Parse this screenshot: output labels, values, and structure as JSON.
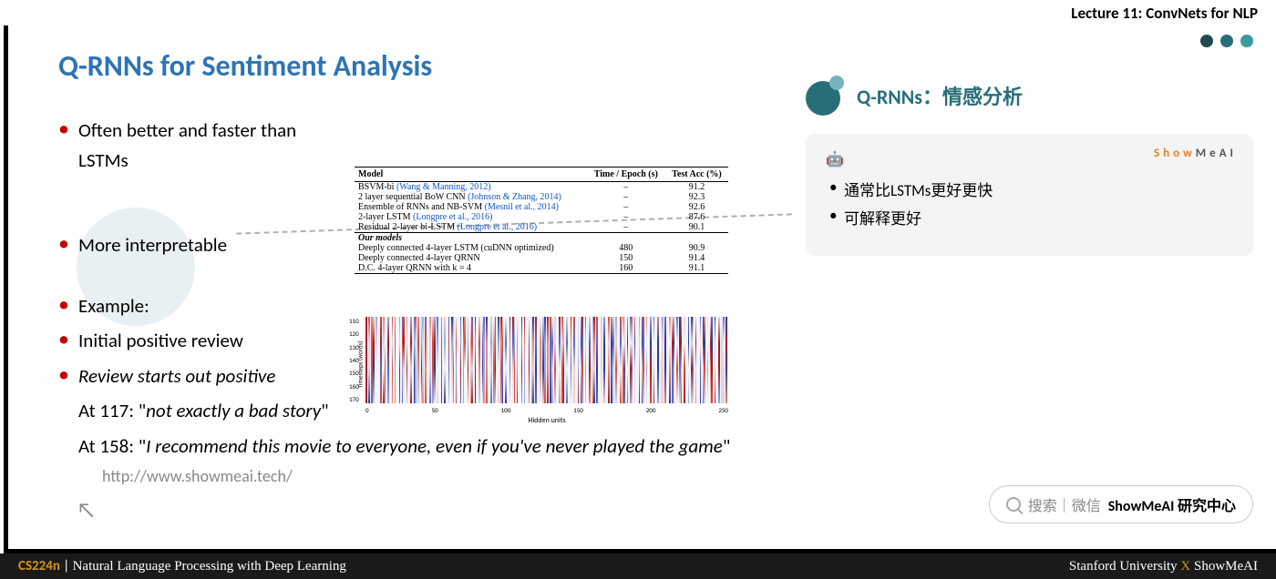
{
  "header": {
    "lecture_label": "Lecture 11: ConvNets for NLP"
  },
  "slide": {
    "title": "Q-RNNs for Sentiment Analysis",
    "title_color": "#2e74b5",
    "bullets": {
      "b1": "Often better and faster than LSTMs",
      "b2": "More interpretable",
      "b3": "Example:",
      "b4": "Initial positive review",
      "b5": "Review starts out positive",
      "b6a": "At 117: \"",
      "b6b": "not exactly a bad story",
      "b6c": "\"",
      "b7a": "At 158: \"",
      "b7b": "I recommend this movie to everyone, even if you've never played the game",
      "b7c": "\""
    },
    "url": "http://www.showmeai.tech/"
  },
  "table": {
    "headers": {
      "c1": "Model",
      "c2": "Time / Epoch (s)",
      "c3": "Test Acc (%)"
    },
    "rows": [
      {
        "model_a": "BSVM-bi ",
        "model_b": "(Wang & Manning, 2012)",
        "time": "–",
        "acc": "91.2"
      },
      {
        "model_a": "2 layer sequential BoW CNN ",
        "model_b": "(Johnson & Zhang, 2014)",
        "time": "–",
        "acc": "92.3"
      },
      {
        "model_a": "Ensemble of RNNs and NB-SVM ",
        "model_b": "(Mesnil et al., 2014)",
        "time": "–",
        "acc": "92.6"
      },
      {
        "model_a": "2-layer LSTM ",
        "model_b": "(Longpre et al., 2016)",
        "time": "–",
        "acc": "87.6"
      },
      {
        "model_a": "Residual 2-layer bi-LSTM ",
        "model_b": "(Longpre et al., 2016)",
        "time": "–",
        "acc": "90.1"
      }
    ],
    "ours_label": "Our models",
    "ours": [
      {
        "model": "Deeply connected 4-layer LSTM (cuDNN optimized)",
        "time": "480",
        "acc": "90.9"
      },
      {
        "model": "Deeply connected 4-layer QRNN",
        "time": "150",
        "acc": "91.4"
      },
      {
        "model": "D.C. 4-layer QRNN with k = 4",
        "time": "160",
        "acc": "91.1"
      }
    ]
  },
  "heatmap": {
    "ylabel": "Timesteps (words)",
    "yticks": [
      "110",
      "120",
      "130",
      "140",
      "150",
      "160",
      "170"
    ],
    "xticks": [
      "0",
      "50",
      "100",
      "150",
      "200",
      "250"
    ],
    "xlabel": "Hidden units",
    "palette": [
      "#a81c1c",
      "#d84a3a",
      "#e88a7a",
      "#f0d0d0",
      "#f5f5fa",
      "#d0d8f0",
      "#9aa8e0",
      "#5a6ac8",
      "#2a3a98"
    ]
  },
  "right": {
    "title": "Q-RNNs：情感分析",
    "brand_a": "Show",
    "brand_b": "MeAI",
    "dots_colors": [
      "#1e4a52",
      "#286e78",
      "#3a9aa0"
    ],
    "robot": "🤖",
    "items": {
      "i1": "通常比LSTMs更好更快",
      "i2": "可解释更好"
    }
  },
  "search": {
    "prefix": "搜索｜微信 ",
    "bold": "ShowMeAI 研究中心"
  },
  "footer": {
    "course": "CS224n",
    "sep": " | ",
    "subtitle": "Natural Language Processing with Deep Learning",
    "right_a": "Stanford University ",
    "right_x": "X",
    "right_b": " ShowMeAI",
    "x_color": "#d8941c"
  }
}
